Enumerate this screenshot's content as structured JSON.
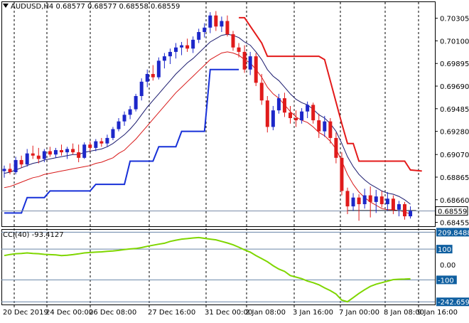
{
  "header": {
    "symbol_line": "AUDUSD,H4  0.68577 0.68577 0.68558 0.68559"
  },
  "cci_header": "CCI(40) -93.4127",
  "colors": {
    "bull": "#1c27c9",
    "bear": "#e01b1b",
    "ma_dark": "#1a1a6e",
    "ma_red": "#d81818",
    "stop_blue": "#1730d8",
    "stop_red": "#e31a1a",
    "cci_line": "#7fd600",
    "grid": "#000000",
    "price_tag_bg": "#ffffff",
    "level_tag_bg": "#0f5fa0"
  },
  "price_axis": {
    "ticks": [
      "0.70305",
      "0.70100",
      "0.69895",
      "0.69690",
      "0.69485",
      "0.69280",
      "0.69070",
      "0.68865",
      "0.68660",
      "0.68455"
    ],
    "tick_values": [
      0.70305,
      0.701,
      0.69895,
      0.6969,
      0.69485,
      0.6928,
      0.6907,
      0.68865,
      0.6866,
      0.68455
    ],
    "current_price": "0.68559",
    "current_value": 0.68559
  },
  "cci_axis": {
    "ticks": [
      "209.8488",
      "100",
      "0.00",
      "-100",
      "-242.6591"
    ],
    "tick_values": [
      209.8488,
      100,
      0,
      -100,
      -242.6591
    ],
    "boxed": [
      "209.8488",
      "100",
      "-100",
      "-242.6591"
    ]
  },
  "time_axis": {
    "labels": [
      "20 Dec 2019",
      "24 Dec 00:00",
      "26 Dec 08:00",
      "27 Dec 16:00",
      "31 Dec 00:00",
      "2 Jan 08:00",
      "3 Jan 16:00",
      "7 Jan 00:00",
      "8 Jan 08:00",
      "9 Jan 16:00"
    ]
  },
  "chart_data": {
    "type": "candlestick",
    "bars": [
      {
        "o": 0.6892,
        "h": 0.6897,
        "l": 0.6886,
        "c": 0.6894
      },
      {
        "o": 0.6894,
        "h": 0.6899,
        "l": 0.6889,
        "c": 0.6891
      },
      {
        "o": 0.6891,
        "h": 0.6905,
        "l": 0.6889,
        "c": 0.6902
      },
      {
        "o": 0.6902,
        "h": 0.6906,
        "l": 0.6895,
        "c": 0.6898
      },
      {
        "o": 0.6898,
        "h": 0.6912,
        "l": 0.6896,
        "c": 0.6908
      },
      {
        "o": 0.6908,
        "h": 0.6915,
        "l": 0.6903,
        "c": 0.6906
      },
      {
        "o": 0.6906,
        "h": 0.6913,
        "l": 0.6899,
        "c": 0.6903
      },
      {
        "o": 0.6903,
        "h": 0.6912,
        "l": 0.69,
        "c": 0.691
      },
      {
        "o": 0.691,
        "h": 0.6914,
        "l": 0.6905,
        "c": 0.6907
      },
      {
        "o": 0.6907,
        "h": 0.6913,
        "l": 0.6904,
        "c": 0.6911
      },
      {
        "o": 0.6911,
        "h": 0.6916,
        "l": 0.6906,
        "c": 0.6909
      },
      {
        "o": 0.6909,
        "h": 0.6914,
        "l": 0.6903,
        "c": 0.6912
      },
      {
        "o": 0.6912,
        "h": 0.6917,
        "l": 0.6907,
        "c": 0.6909
      },
      {
        "o": 0.6909,
        "h": 0.6916,
        "l": 0.69,
        "c": 0.6904
      },
      {
        "o": 0.6904,
        "h": 0.6918,
        "l": 0.6903,
        "c": 0.6916
      },
      {
        "o": 0.6916,
        "h": 0.6919,
        "l": 0.691,
        "c": 0.6913
      },
      {
        "o": 0.6913,
        "h": 0.6921,
        "l": 0.691,
        "c": 0.6919
      },
      {
        "o": 0.6919,
        "h": 0.6922,
        "l": 0.6914,
        "c": 0.6917
      },
      {
        "o": 0.6917,
        "h": 0.6925,
        "l": 0.6914,
        "c": 0.6922
      },
      {
        "o": 0.6922,
        "h": 0.6932,
        "l": 0.692,
        "c": 0.693
      },
      {
        "o": 0.693,
        "h": 0.694,
        "l": 0.6928,
        "c": 0.6937
      },
      {
        "o": 0.6937,
        "h": 0.6946,
        "l": 0.6933,
        "c": 0.6943
      },
      {
        "o": 0.6943,
        "h": 0.6951,
        "l": 0.6939,
        "c": 0.6948
      },
      {
        "o": 0.6948,
        "h": 0.6962,
        "l": 0.6946,
        "c": 0.696
      },
      {
        "o": 0.696,
        "h": 0.6976,
        "l": 0.6956,
        "c": 0.6973
      },
      {
        "o": 0.6973,
        "h": 0.6984,
        "l": 0.6968,
        "c": 0.698
      },
      {
        "o": 0.698,
        "h": 0.6988,
        "l": 0.6974,
        "c": 0.6977
      },
      {
        "o": 0.6977,
        "h": 0.6995,
        "l": 0.6975,
        "c": 0.6992
      },
      {
        "o": 0.6992,
        "h": 0.6999,
        "l": 0.6985,
        "c": 0.6996
      },
      {
        "o": 0.6996,
        "h": 0.7003,
        "l": 0.6989,
        "c": 0.7
      },
      {
        "o": 0.7,
        "h": 0.7008,
        "l": 0.6994,
        "c": 0.7004
      },
      {
        "o": 0.7004,
        "h": 0.7009,
        "l": 0.6997,
        "c": 0.7006
      },
      {
        "o": 0.7006,
        "h": 0.7012,
        "l": 0.7,
        "c": 0.7003
      },
      {
        "o": 0.7003,
        "h": 0.7014,
        "l": 0.6999,
        "c": 0.7011
      },
      {
        "o": 0.7011,
        "h": 0.7021,
        "l": 0.7008,
        "c": 0.7018
      },
      {
        "o": 0.7018,
        "h": 0.7026,
        "l": 0.7013,
        "c": 0.7022
      },
      {
        "o": 0.7022,
        "h": 0.7036,
        "l": 0.7017,
        "c": 0.7033
      },
      {
        "o": 0.7033,
        "h": 0.7037,
        "l": 0.7019,
        "c": 0.7023
      },
      {
        "o": 0.7023,
        "h": 0.7032,
        "l": 0.7018,
        "c": 0.7028
      },
      {
        "o": 0.7028,
        "h": 0.7033,
        "l": 0.7014,
        "c": 0.7016
      },
      {
        "o": 0.7016,
        "h": 0.7019,
        "l": 0.7001,
        "c": 0.7004
      },
      {
        "o": 0.7004,
        "h": 0.7008,
        "l": 0.6995,
        "c": 0.7
      },
      {
        "o": 0.7,
        "h": 0.7006,
        "l": 0.6981,
        "c": 0.6984
      },
      {
        "o": 0.6984,
        "h": 0.7,
        "l": 0.6979,
        "c": 0.6996
      },
      {
        "o": 0.6996,
        "h": 0.6999,
        "l": 0.6969,
        "c": 0.6972
      },
      {
        "o": 0.6972,
        "h": 0.698,
        "l": 0.6952,
        "c": 0.6956
      },
      {
        "o": 0.6956,
        "h": 0.696,
        "l": 0.6927,
        "c": 0.6932
      },
      {
        "o": 0.6932,
        "h": 0.6951,
        "l": 0.6929,
        "c": 0.6947
      },
      {
        "o": 0.6947,
        "h": 0.6962,
        "l": 0.6944,
        "c": 0.6958
      },
      {
        "o": 0.6958,
        "h": 0.6963,
        "l": 0.6941,
        "c": 0.6945
      },
      {
        "o": 0.6945,
        "h": 0.6951,
        "l": 0.6935,
        "c": 0.694
      },
      {
        "o": 0.694,
        "h": 0.6947,
        "l": 0.6932,
        "c": 0.6938
      },
      {
        "o": 0.6938,
        "h": 0.6949,
        "l": 0.6935,
        "c": 0.6946
      },
      {
        "o": 0.6946,
        "h": 0.6955,
        "l": 0.694,
        "c": 0.6952
      },
      {
        "o": 0.6952,
        "h": 0.6954,
        "l": 0.6935,
        "c": 0.6938
      },
      {
        "o": 0.6938,
        "h": 0.6944,
        "l": 0.6922,
        "c": 0.6928
      },
      {
        "o": 0.6928,
        "h": 0.6942,
        "l": 0.6923,
        "c": 0.6937
      },
      {
        "o": 0.6937,
        "h": 0.694,
        "l": 0.6917,
        "c": 0.6922
      },
      {
        "o": 0.6922,
        "h": 0.6927,
        "l": 0.6899,
        "c": 0.6904
      },
      {
        "o": 0.6904,
        "h": 0.6909,
        "l": 0.687,
        "c": 0.6874
      },
      {
        "o": 0.6874,
        "h": 0.6877,
        "l": 0.6853,
        "c": 0.686
      },
      {
        "o": 0.686,
        "h": 0.6872,
        "l": 0.6856,
        "c": 0.6868
      },
      {
        "o": 0.6868,
        "h": 0.6871,
        "l": 0.6847,
        "c": 0.6862
      },
      {
        "o": 0.6862,
        "h": 0.6876,
        "l": 0.6858,
        "c": 0.687
      },
      {
        "o": 0.687,
        "h": 0.6878,
        "l": 0.685,
        "c": 0.6864
      },
      {
        "o": 0.6864,
        "h": 0.6875,
        "l": 0.6854,
        "c": 0.6869
      },
      {
        "o": 0.6869,
        "h": 0.6874,
        "l": 0.6859,
        "c": 0.6862
      },
      {
        "o": 0.6862,
        "h": 0.6873,
        "l": 0.6856,
        "c": 0.6867
      },
      {
        "o": 0.6867,
        "h": 0.687,
        "l": 0.6853,
        "c": 0.6857
      },
      {
        "o": 0.6857,
        "h": 0.6865,
        "l": 0.6851,
        "c": 0.6862
      },
      {
        "o": 0.6862,
        "h": 0.6864,
        "l": 0.6848,
        "c": 0.6851
      },
      {
        "o": 0.6851,
        "h": 0.686,
        "l": 0.6849,
        "c": 0.6856
      }
    ],
    "ma_dark": [
      0.689,
      0.6891,
      0.6893,
      0.6895,
      0.6897,
      0.6899,
      0.69,
      0.6902,
      0.6903,
      0.6904,
      0.6905,
      0.6906,
      0.6907,
      0.6907,
      0.6909,
      0.691,
      0.6911,
      0.6912,
      0.6914,
      0.6917,
      0.6921,
      0.6925,
      0.693,
      0.6936,
      0.6943,
      0.695,
      0.6956,
      0.6962,
      0.6968,
      0.6974,
      0.698,
      0.6985,
      0.699,
      0.6994,
      0.6999,
      0.7004,
      0.7009,
      0.7012,
      0.7015,
      0.7016,
      0.7015,
      0.7013,
      0.7009,
      0.7006,
      0.7,
      0.6993,
      0.6984,
      0.6978,
      0.6974,
      0.6968,
      0.6962,
      0.6957,
      0.6954,
      0.6952,
      0.6948,
      0.6943,
      0.694,
      0.6935,
      0.6928,
      0.6917,
      0.6905,
      0.6896,
      0.6889,
      0.6884,
      0.688,
      0.6877,
      0.6874,
      0.6872,
      0.6871,
      0.6869,
      0.6866,
      0.6862
    ],
    "ma_red": [
      0.6877,
      0.6878,
      0.688,
      0.6882,
      0.6884,
      0.6886,
      0.6887,
      0.6889,
      0.689,
      0.6891,
      0.6892,
      0.6893,
      0.6894,
      0.6895,
      0.6896,
      0.6897,
      0.6899,
      0.69,
      0.6902,
      0.6904,
      0.6908,
      0.6911,
      0.6916,
      0.6921,
      0.6927,
      0.6933,
      0.6939,
      0.6945,
      0.6951,
      0.6957,
      0.6963,
      0.6968,
      0.6973,
      0.6978,
      0.6983,
      0.6988,
      0.6993,
      0.6996,
      0.6999,
      0.7,
      0.6999,
      0.6997,
      0.6993,
      0.699,
      0.6984,
      0.6977,
      0.6968,
      0.6962,
      0.6958,
      0.6952,
      0.6946,
      0.6941,
      0.6938,
      0.6936,
      0.6932,
      0.6927,
      0.6924,
      0.6919,
      0.6912,
      0.6901,
      0.6889,
      0.688,
      0.6873,
      0.6868,
      0.6864,
      0.6861,
      0.6858,
      0.6857,
      0.6857,
      0.6856,
      0.6855,
      0.6853
    ],
    "stop_blue": [
      [
        0,
        0.6854
      ],
      [
        3,
        0.6854
      ],
      [
        4,
        0.6868
      ],
      [
        7,
        0.6868
      ],
      [
        8,
        0.6874
      ],
      [
        15,
        0.6874
      ],
      [
        16,
        0.688
      ],
      [
        21,
        0.688
      ],
      [
        22,
        0.6901
      ],
      [
        26,
        0.6901
      ],
      [
        27,
        0.6914
      ],
      [
        30,
        0.6914
      ],
      [
        31,
        0.6928
      ],
      [
        35,
        0.6928
      ],
      [
        36,
        0.6984
      ],
      [
        41,
        0.6984
      ]
    ],
    "stop_red": [
      [
        41,
        0.7031
      ],
      [
        42,
        0.7031
      ],
      [
        45,
        0.7008
      ],
      [
        46,
        0.6996
      ],
      [
        55,
        0.6996
      ],
      [
        56,
        0.6993
      ],
      [
        59,
        0.6935
      ],
      [
        60,
        0.6917
      ],
      [
        61,
        0.6917
      ],
      [
        62,
        0.6901
      ],
      [
        70,
        0.6901
      ],
      [
        71,
        0.6893
      ],
      [
        73,
        0.6892
      ]
    ],
    "support_line": {
      "from": 60,
      "to": 72,
      "value": 0.6856
    },
    "cci": [
      58,
      65,
      70,
      72,
      75,
      72,
      70,
      66,
      64,
      62,
      58,
      60,
      64,
      69,
      75,
      78,
      80,
      82,
      86,
      88,
      92,
      97,
      101,
      104,
      110,
      118,
      125,
      132,
      138,
      150,
      158,
      165,
      168,
      172,
      175,
      170,
      165,
      160,
      150,
      140,
      128,
      112,
      95,
      80,
      58,
      38,
      18,
      -8,
      -30,
      -45,
      -72,
      -82,
      -92,
      -108,
      -118,
      -132,
      -152,
      -170,
      -192,
      -232,
      -242,
      -215,
      -188,
      -164,
      -142,
      -128,
      -118,
      -108,
      -98,
      -96,
      -95,
      -93
    ],
    "price_range": [
      0.6842,
      0.7038
    ],
    "cci_range": [
      -260,
      230
    ],
    "xlabel": "",
    "ylabel": ""
  }
}
